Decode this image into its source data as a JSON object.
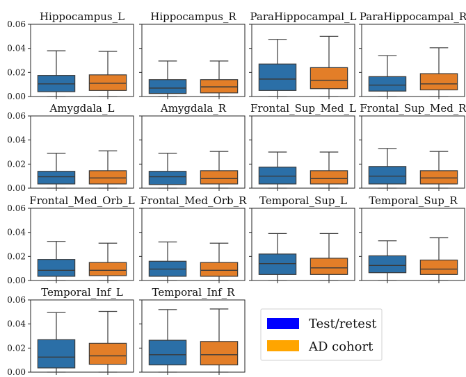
{
  "chart_data": {
    "type": "box",
    "ylim": [
      0,
      0.06
    ],
    "yticks": [
      "0.00",
      "0.02",
      "0.04",
      "0.06"
    ],
    "grid": false,
    "legend_placement": "bottom-right",
    "colors": {
      "test_retest": "#2b6fa7",
      "ad_cohort": "#e37e28"
    },
    "legend": [
      {
        "label": "Test/retest",
        "color": "#0000ff"
      },
      {
        "label": "AD cohort",
        "color": "#ffa500"
      }
    ],
    "panels": [
      {
        "title": "Hippocampus_L",
        "boxes": [
          {
            "series": "test_retest",
            "min": 0.0,
            "q1": 0.004,
            "median": 0.0105,
            "q3": 0.0175,
            "max": 0.038
          },
          {
            "series": "ad_cohort",
            "min": 0.0,
            "q1": 0.005,
            "median": 0.011,
            "q3": 0.018,
            "max": 0.0375
          }
        ]
      },
      {
        "title": "Hippocampus_R",
        "boxes": [
          {
            "series": "test_retest",
            "min": 0.0,
            "q1": 0.0025,
            "median": 0.007,
            "q3": 0.014,
            "max": 0.0295
          },
          {
            "series": "ad_cohort",
            "min": 0.0,
            "q1": 0.003,
            "median": 0.008,
            "q3": 0.014,
            "max": 0.0295
          }
        ]
      },
      {
        "title": "ParaHippocampal_L",
        "boxes": [
          {
            "series": "test_retest",
            "min": 0.0,
            "q1": 0.005,
            "median": 0.0145,
            "q3": 0.027,
            "max": 0.0475
          },
          {
            "series": "ad_cohort",
            "min": 0.0,
            "q1": 0.0065,
            "median": 0.0135,
            "q3": 0.024,
            "max": 0.05
          }
        ]
      },
      {
        "title": "ParaHippocampal_R",
        "boxes": [
          {
            "series": "test_retest",
            "min": 0.0,
            "q1": 0.0045,
            "median": 0.0095,
            "q3": 0.0165,
            "max": 0.034
          },
          {
            "series": "ad_cohort",
            "min": 0.0,
            "q1": 0.0055,
            "median": 0.0105,
            "q3": 0.019,
            "max": 0.0405
          }
        ]
      },
      {
        "title": "Amygdala_L",
        "boxes": [
          {
            "series": "test_retest",
            "min": 0.0,
            "q1": 0.0035,
            "median": 0.0095,
            "q3": 0.014,
            "max": 0.029
          },
          {
            "series": "ad_cohort",
            "min": 0.0,
            "q1": 0.0035,
            "median": 0.0085,
            "q3": 0.0145,
            "max": 0.031
          }
        ]
      },
      {
        "title": "Amygdala_R",
        "boxes": [
          {
            "series": "test_retest",
            "min": 0.0,
            "q1": 0.003,
            "median": 0.0095,
            "q3": 0.014,
            "max": 0.029
          },
          {
            "series": "ad_cohort",
            "min": 0.0,
            "q1": 0.0035,
            "median": 0.008,
            "q3": 0.0145,
            "max": 0.0305
          }
        ]
      },
      {
        "title": "Frontal_Sup_Med_L",
        "boxes": [
          {
            "series": "test_retest",
            "min": 0.0,
            "q1": 0.0035,
            "median": 0.01,
            "q3": 0.0175,
            "max": 0.03
          },
          {
            "series": "ad_cohort",
            "min": 0.0,
            "q1": 0.0035,
            "median": 0.008,
            "q3": 0.0145,
            "max": 0.03
          }
        ]
      },
      {
        "title": "Frontal_Sup_Med_R",
        "boxes": [
          {
            "series": "test_retest",
            "min": 0.0,
            "q1": 0.0035,
            "median": 0.01,
            "q3": 0.018,
            "max": 0.033
          },
          {
            "series": "ad_cohort",
            "min": 0.0,
            "q1": 0.0035,
            "median": 0.0085,
            "q3": 0.0145,
            "max": 0.0305
          }
        ]
      },
      {
        "title": "Frontal_Med_Orb_L",
        "boxes": [
          {
            "series": "test_retest",
            "min": 0.0,
            "q1": 0.0035,
            "median": 0.0085,
            "q3": 0.0175,
            "max": 0.0325
          },
          {
            "series": "ad_cohort",
            "min": 0.0,
            "q1": 0.004,
            "median": 0.0085,
            "q3": 0.015,
            "max": 0.031
          }
        ]
      },
      {
        "title": "Frontal_Med_Orb_R",
        "boxes": [
          {
            "series": "test_retest",
            "min": 0.0,
            "q1": 0.0035,
            "median": 0.0095,
            "q3": 0.016,
            "max": 0.032
          },
          {
            "series": "ad_cohort",
            "min": 0.0,
            "q1": 0.0035,
            "median": 0.0085,
            "q3": 0.015,
            "max": 0.031
          }
        ]
      },
      {
        "title": "Temporal_Sup_L",
        "boxes": [
          {
            "series": "test_retest",
            "min": 0.0,
            "q1": 0.005,
            "median": 0.014,
            "q3": 0.022,
            "max": 0.039
          },
          {
            "series": "ad_cohort",
            "min": 0.0,
            "q1": 0.005,
            "median": 0.0105,
            "q3": 0.0185,
            "max": 0.039
          }
        ]
      },
      {
        "title": "Temporal_Sup_R",
        "boxes": [
          {
            "series": "test_retest",
            "min": 0.0,
            "q1": 0.0065,
            "median": 0.0125,
            "q3": 0.0205,
            "max": 0.033
          },
          {
            "series": "ad_cohort",
            "min": 0.0,
            "q1": 0.005,
            "median": 0.0095,
            "q3": 0.017,
            "max": 0.0355
          }
        ]
      },
      {
        "title": "Temporal_Inf_L",
        "boxes": [
          {
            "series": "test_retest",
            "min": 0.0,
            "q1": 0.0035,
            "median": 0.0125,
            "q3": 0.027,
            "max": 0.0495
          },
          {
            "series": "ad_cohort",
            "min": 0.0,
            "q1": 0.0065,
            "median": 0.0135,
            "q3": 0.024,
            "max": 0.0505
          }
        ]
      },
      {
        "title": "Temporal_Inf_R",
        "boxes": [
          {
            "series": "test_retest",
            "min": 0.0,
            "q1": 0.006,
            "median": 0.0145,
            "q3": 0.0265,
            "max": 0.052
          },
          {
            "series": "ad_cohort",
            "min": 0.0,
            "q1": 0.006,
            "median": 0.0145,
            "q3": 0.0255,
            "max": 0.0525
          }
        ]
      }
    ]
  }
}
